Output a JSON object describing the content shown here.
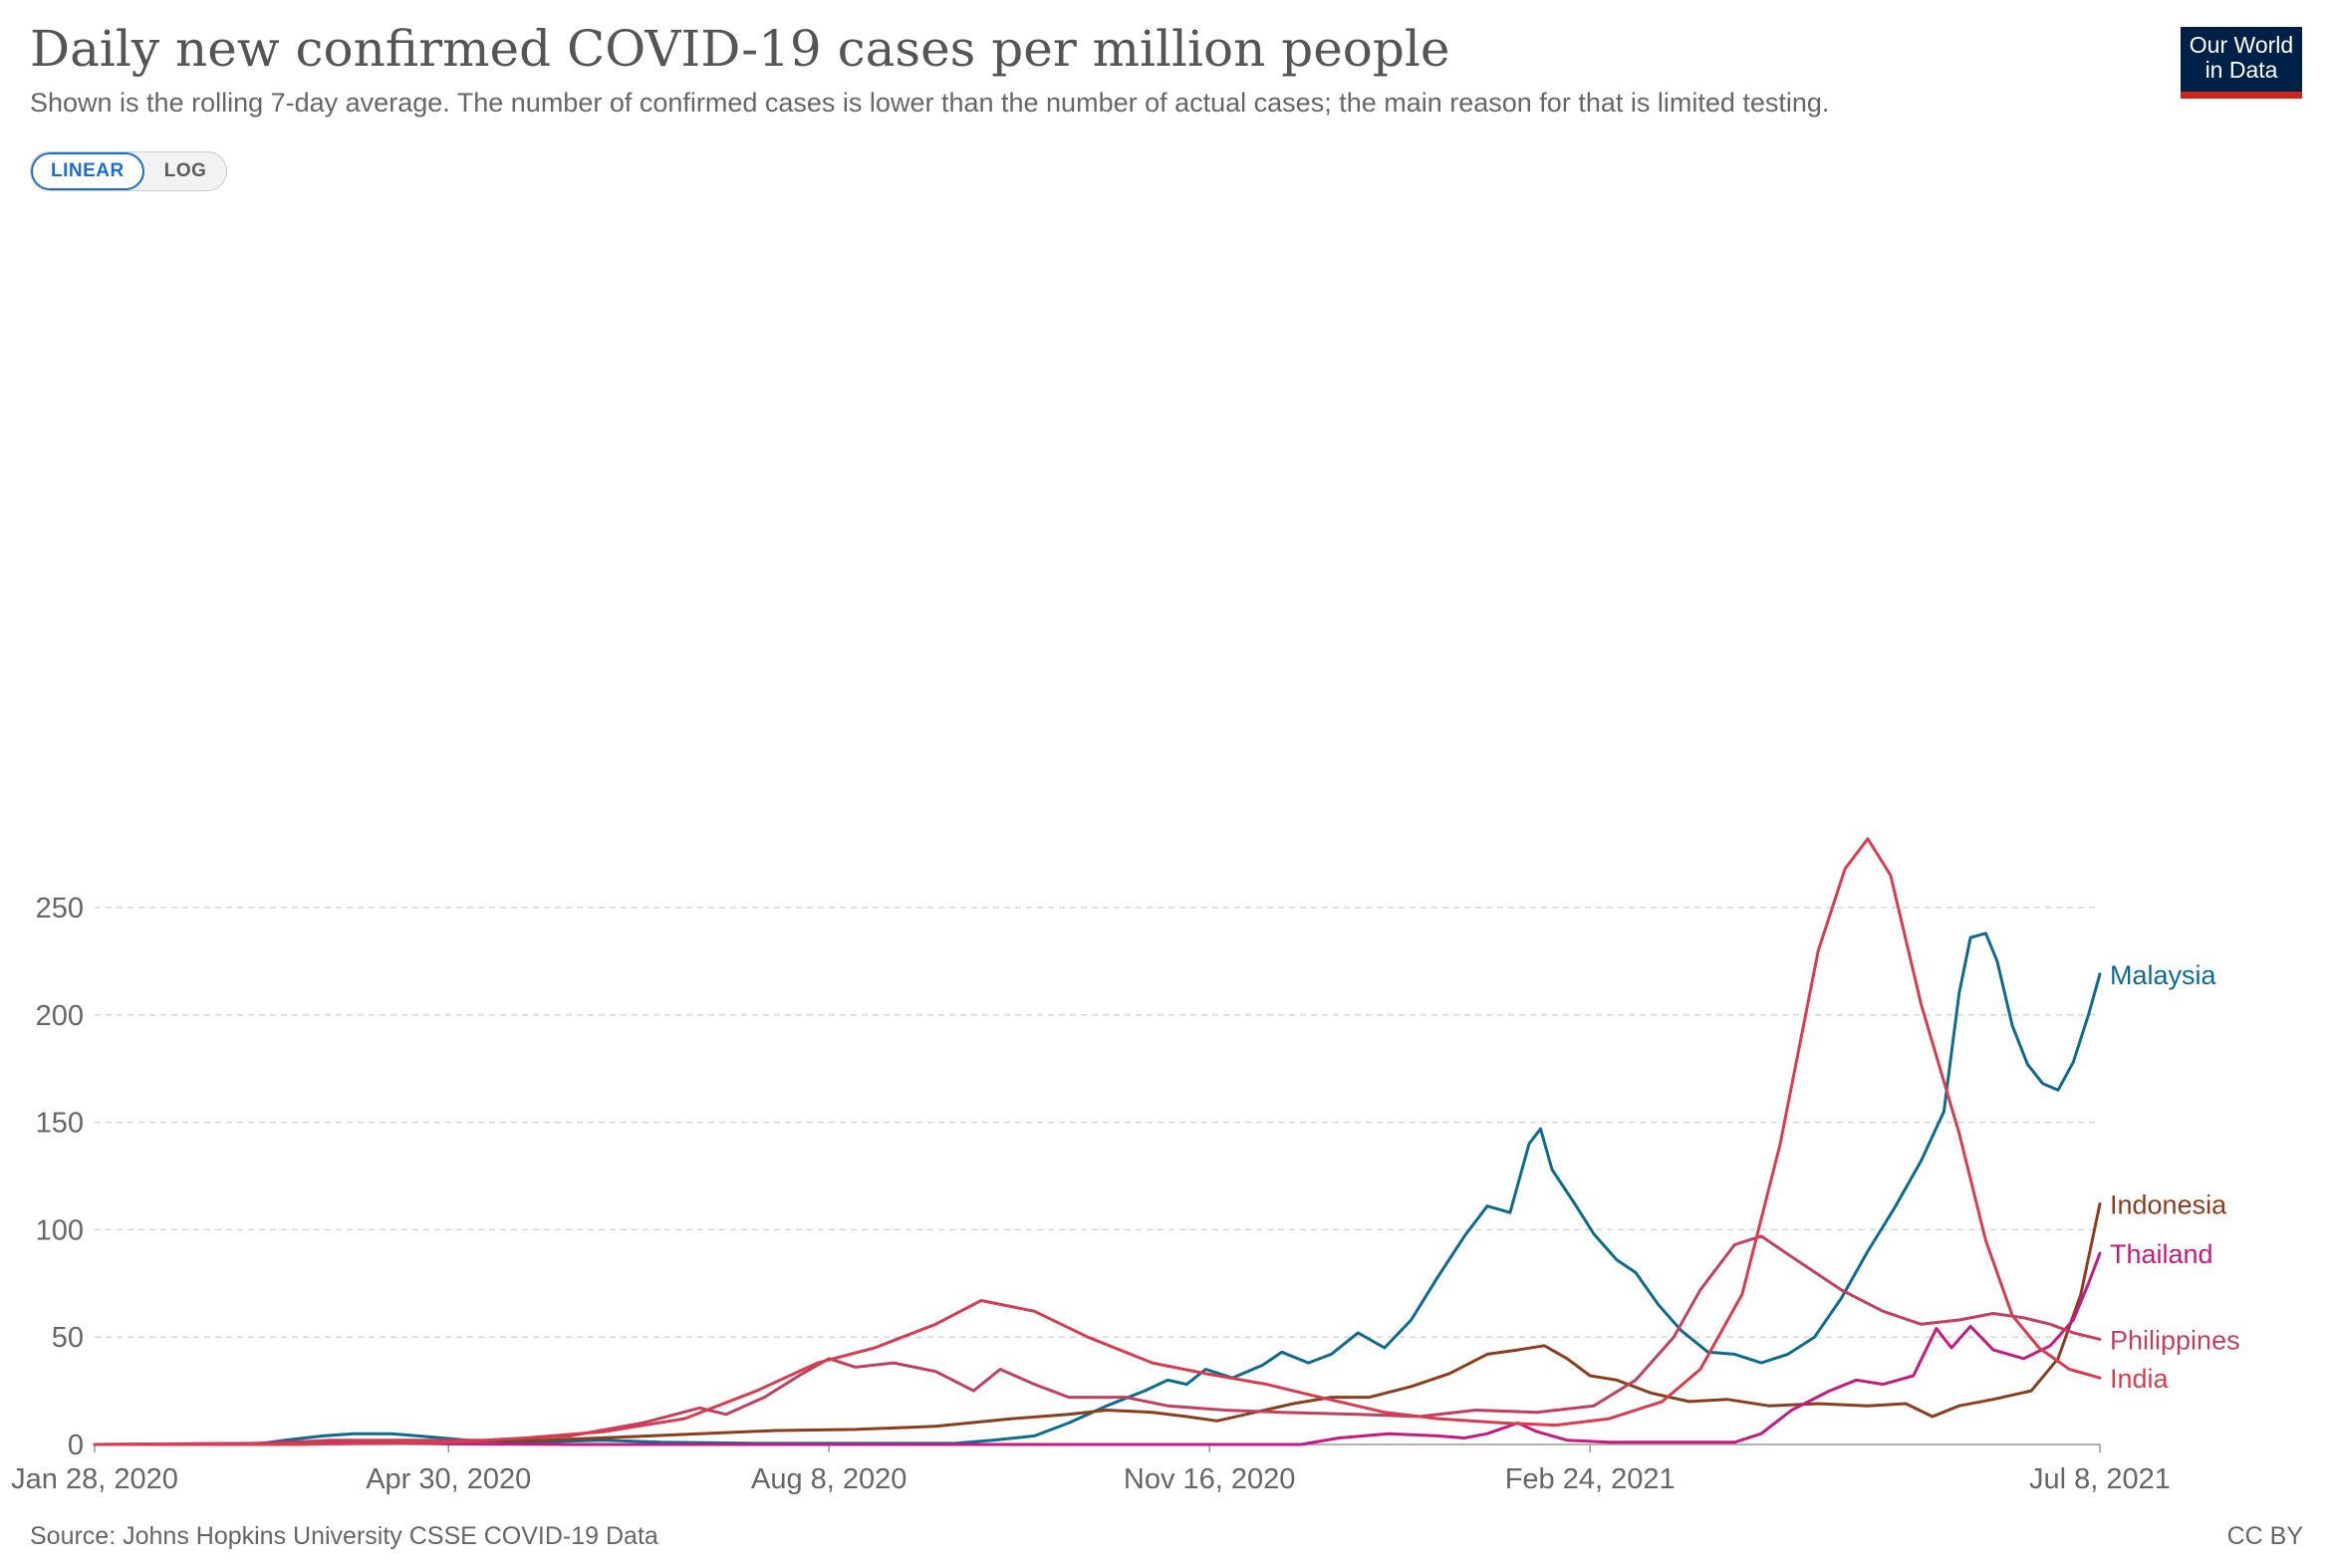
{
  "header": {
    "title": "Daily new confirmed COVID-19 cases per million people",
    "subtitle": "Shown is the rolling 7-day average. The number of confirmed cases is lower than the number of actual cases; the main reason for that is limited testing."
  },
  "scale_toggle": {
    "linear_label": "LINEAR",
    "log_label": "LOG",
    "selected": "LINEAR"
  },
  "logo": {
    "text": "Our World\nin Data",
    "bg_color": "#002147",
    "accent_color": "#ce261e"
  },
  "footer": {
    "source": "Source: Johns Hopkins University CSSE COVID-19 Data",
    "license": "CC BY"
  },
  "chart_data": {
    "type": "line",
    "title": "Daily new confirmed COVID-19 cases per million people",
    "xlabel": "",
    "ylabel": "",
    "x_range": [
      "2020-01-28",
      "2021-07-08"
    ],
    "ylim": [
      0,
      280
    ],
    "y_ticks": [
      0,
      50,
      100,
      150,
      200,
      250
    ],
    "x_ticks": [
      "Jan 28, 2020",
      "Apr 30, 2020",
      "Aug 8, 2020",
      "Nov 16, 2020",
      "Feb 24, 2021",
      "Jul 8, 2021"
    ],
    "x_tick_dates": [
      "2020-01-28",
      "2020-04-30",
      "2020-08-08",
      "2020-11-16",
      "2021-02-24",
      "2021-07-08"
    ],
    "grid": "horizontal dashed",
    "legend": "line-end labels",
    "series": [
      {
        "name": "Malaysia",
        "color": "#0f6b8e",
        "points": [
          [
            "2020-01-28",
            0
          ],
          [
            "2020-03-10",
            0
          ],
          [
            "2020-03-18",
            2
          ],
          [
            "2020-03-28",
            4
          ],
          [
            "2020-04-05",
            5
          ],
          [
            "2020-04-15",
            5
          ],
          [
            "2020-04-22",
            4
          ],
          [
            "2020-05-05",
            2
          ],
          [
            "2020-05-20",
            1
          ],
          [
            "2020-06-10",
            2
          ],
          [
            "2020-06-25",
            1
          ],
          [
            "2020-07-20",
            0.5
          ],
          [
            "2020-08-20",
            0.5
          ],
          [
            "2020-09-10",
            0.5
          ],
          [
            "2020-09-20",
            2
          ],
          [
            "2020-10-01",
            4
          ],
          [
            "2020-10-10",
            10
          ],
          [
            "2020-10-20",
            18
          ],
          [
            "2020-10-30",
            25
          ],
          [
            "2020-11-05",
            30
          ],
          [
            "2020-11-10",
            28
          ],
          [
            "2020-11-15",
            35
          ],
          [
            "2020-11-22",
            31
          ],
          [
            "2020-11-30",
            37
          ],
          [
            "2020-12-05",
            43
          ],
          [
            "2020-12-12",
            38
          ],
          [
            "2020-12-18",
            42
          ],
          [
            "2020-12-25",
            52
          ],
          [
            "2021-01-01",
            45
          ],
          [
            "2021-01-08",
            58
          ],
          [
            "2021-01-15",
            78
          ],
          [
            "2021-01-22",
            97
          ],
          [
            "2021-01-28",
            111
          ],
          [
            "2021-02-03",
            108
          ],
          [
            "2021-02-08",
            140
          ],
          [
            "2021-02-11",
            147
          ],
          [
            "2021-02-14",
            128
          ],
          [
            "2021-02-20",
            112
          ],
          [
            "2021-02-25",
            98
          ],
          [
            "2021-03-03",
            86
          ],
          [
            "2021-03-08",
            80
          ],
          [
            "2021-03-14",
            65
          ],
          [
            "2021-03-20",
            53
          ],
          [
            "2021-03-27",
            43
          ],
          [
            "2021-04-03",
            42
          ],
          [
            "2021-04-10",
            38
          ],
          [
            "2021-04-17",
            42
          ],
          [
            "2021-04-24",
            50
          ],
          [
            "2021-05-01",
            68
          ],
          [
            "2021-05-08",
            90
          ],
          [
            "2021-05-15",
            110
          ],
          [
            "2021-05-22",
            132
          ],
          [
            "2021-05-28",
            155
          ],
          [
            "2021-06-01",
            210
          ],
          [
            "2021-06-04",
            236
          ],
          [
            "2021-06-08",
            238
          ],
          [
            "2021-06-11",
            225
          ],
          [
            "2021-06-15",
            195
          ],
          [
            "2021-06-19",
            177
          ],
          [
            "2021-06-23",
            168
          ],
          [
            "2021-06-27",
            165
          ],
          [
            "2021-07-01",
            178
          ],
          [
            "2021-07-05",
            200
          ],
          [
            "2021-07-08",
            219
          ]
        ]
      },
      {
        "name": "Indonesia",
        "color": "#8b3e1e",
        "points": [
          [
            "2020-01-28",
            0
          ],
          [
            "2020-03-20",
            0
          ],
          [
            "2020-04-10",
            1
          ],
          [
            "2020-05-01",
            1.5
          ],
          [
            "2020-05-25",
            2
          ],
          [
            "2020-06-15",
            3.5
          ],
          [
            "2020-07-05",
            5
          ],
          [
            "2020-07-25",
            6.5
          ],
          [
            "2020-08-15",
            7
          ],
          [
            "2020-09-05",
            8.5
          ],
          [
            "2020-09-25",
            12
          ],
          [
            "2020-10-10",
            14
          ],
          [
            "2020-10-20",
            16
          ],
          [
            "2020-11-01",
            15
          ],
          [
            "2020-11-10",
            13
          ],
          [
            "2020-11-18",
            11
          ],
          [
            "2020-11-28",
            15
          ],
          [
            "2020-12-08",
            19
          ],
          [
            "2020-12-18",
            22
          ],
          [
            "2020-12-28",
            22
          ],
          [
            "2021-01-08",
            27
          ],
          [
            "2021-01-18",
            33
          ],
          [
            "2021-01-28",
            42
          ],
          [
            "2021-02-05",
            44
          ],
          [
            "2021-02-12",
            46
          ],
          [
            "2021-02-18",
            40
          ],
          [
            "2021-02-24",
            32
          ],
          [
            "2021-03-03",
            30
          ],
          [
            "2021-03-12",
            24
          ],
          [
            "2021-03-22",
            20
          ],
          [
            "2021-04-01",
            21
          ],
          [
            "2021-04-12",
            18
          ],
          [
            "2021-04-25",
            19
          ],
          [
            "2021-05-08",
            18
          ],
          [
            "2021-05-18",
            19
          ],
          [
            "2021-05-25",
            13
          ],
          [
            "2021-06-01",
            18
          ],
          [
            "2021-06-10",
            21
          ],
          [
            "2021-06-20",
            25
          ],
          [
            "2021-06-27",
            40
          ],
          [
            "2021-07-03",
            70
          ],
          [
            "2021-07-08",
            112
          ]
        ]
      },
      {
        "name": "Thailand",
        "color": "#c41a82",
        "points": [
          [
            "2020-01-28",
            0
          ],
          [
            "2020-03-10",
            0.5
          ],
          [
            "2020-03-25",
            1.5
          ],
          [
            "2020-04-10",
            1
          ],
          [
            "2020-04-30",
            0.3
          ],
          [
            "2020-06-01",
            0
          ],
          [
            "2020-12-10",
            0
          ],
          [
            "2020-12-20",
            3
          ],
          [
            "2021-01-02",
            5
          ],
          [
            "2021-01-15",
            4
          ],
          [
            "2021-01-22",
            3
          ],
          [
            "2021-01-28",
            5
          ],
          [
            "2021-02-05",
            10
          ],
          [
            "2021-02-10",
            6
          ],
          [
            "2021-02-18",
            2
          ],
          [
            "2021-03-01",
            1
          ],
          [
            "2021-03-25",
            1
          ],
          [
            "2021-04-03",
            1
          ],
          [
            "2021-04-10",
            5
          ],
          [
            "2021-04-18",
            16
          ],
          [
            "2021-04-28",
            25
          ],
          [
            "2021-05-05",
            30
          ],
          [
            "2021-05-12",
            28
          ],
          [
            "2021-05-20",
            32
          ],
          [
            "2021-05-26",
            54
          ],
          [
            "2021-05-30",
            45
          ],
          [
            "2021-06-04",
            55
          ],
          [
            "2021-06-10",
            44
          ],
          [
            "2021-06-18",
            40
          ],
          [
            "2021-06-25",
            46
          ],
          [
            "2021-07-01",
            58
          ],
          [
            "2021-07-05",
            75
          ],
          [
            "2021-07-08",
            89
          ]
        ]
      },
      {
        "name": "Philippines",
        "color": "#c2405f",
        "points": [
          [
            "2020-01-28",
            0
          ],
          [
            "2020-03-15",
            0.5
          ],
          [
            "2020-03-30",
            2
          ],
          [
            "2020-04-15",
            2
          ],
          [
            "2020-05-10",
            2
          ],
          [
            "2020-06-01",
            4
          ],
          [
            "2020-06-20",
            10
          ],
          [
            "2020-07-05",
            17
          ],
          [
            "2020-07-12",
            14
          ],
          [
            "2020-07-22",
            22
          ],
          [
            "2020-08-01",
            33
          ],
          [
            "2020-08-08",
            40
          ],
          [
            "2020-08-15",
            36
          ],
          [
            "2020-08-25",
            38
          ],
          [
            "2020-09-05",
            34
          ],
          [
            "2020-09-15",
            25
          ],
          [
            "2020-09-22",
            35
          ],
          [
            "2020-10-01",
            28
          ],
          [
            "2020-10-10",
            22
          ],
          [
            "2020-10-25",
            22
          ],
          [
            "2020-11-05",
            18
          ],
          [
            "2020-11-20",
            16
          ],
          [
            "2020-12-05",
            15
          ],
          [
            "2020-12-25",
            14
          ],
          [
            "2021-01-10",
            13
          ],
          [
            "2021-01-25",
            16
          ],
          [
            "2021-02-10",
            15
          ],
          [
            "2021-02-25",
            18
          ],
          [
            "2021-03-08",
            30
          ],
          [
            "2021-03-18",
            50
          ],
          [
            "2021-03-25",
            72
          ],
          [
            "2021-04-03",
            93
          ],
          [
            "2021-04-10",
            97
          ],
          [
            "2021-04-20",
            85
          ],
          [
            "2021-05-01",
            72
          ],
          [
            "2021-05-12",
            62
          ],
          [
            "2021-05-22",
            56
          ],
          [
            "2021-06-01",
            58
          ],
          [
            "2021-06-10",
            61
          ],
          [
            "2021-06-18",
            59
          ],
          [
            "2021-06-25",
            56
          ],
          [
            "2021-07-01",
            52
          ],
          [
            "2021-07-08",
            49
          ]
        ]
      },
      {
        "name": "India",
        "color": "#d73c50",
        "points": [
          [
            "2020-01-28",
            0
          ],
          [
            "2020-03-20",
            0
          ],
          [
            "2020-04-10",
            0.5
          ],
          [
            "2020-05-01",
            1
          ],
          [
            "2020-05-20",
            3
          ],
          [
            "2020-06-10",
            6
          ],
          [
            "2020-07-01",
            12
          ],
          [
            "2020-07-20",
            25
          ],
          [
            "2020-08-05",
            38
          ],
          [
            "2020-08-20",
            45
          ],
          [
            "2020-09-05",
            56
          ],
          [
            "2020-09-17",
            67
          ],
          [
            "2020-10-01",
            62
          ],
          [
            "2020-10-15",
            50
          ],
          [
            "2020-11-01",
            38
          ],
          [
            "2020-11-15",
            33
          ],
          [
            "2020-12-01",
            28
          ],
          [
            "2020-12-15",
            22
          ],
          [
            "2021-01-01",
            15
          ],
          [
            "2021-01-15",
            12
          ],
          [
            "2021-02-01",
            10
          ],
          [
            "2021-02-15",
            9
          ],
          [
            "2021-03-01",
            12
          ],
          [
            "2021-03-15",
            20
          ],
          [
            "2021-03-25",
            35
          ],
          [
            "2021-04-05",
            70
          ],
          [
            "2021-04-15",
            140
          ],
          [
            "2021-04-25",
            230
          ],
          [
            "2021-05-02",
            268
          ],
          [
            "2021-05-08",
            282
          ],
          [
            "2021-05-14",
            265
          ],
          [
            "2021-05-22",
            205
          ],
          [
            "2021-06-01",
            145
          ],
          [
            "2021-06-08",
            95
          ],
          [
            "2021-06-15",
            60
          ],
          [
            "2021-06-22",
            45
          ],
          [
            "2021-06-30",
            35
          ],
          [
            "2021-07-08",
            31
          ]
        ]
      }
    ]
  }
}
